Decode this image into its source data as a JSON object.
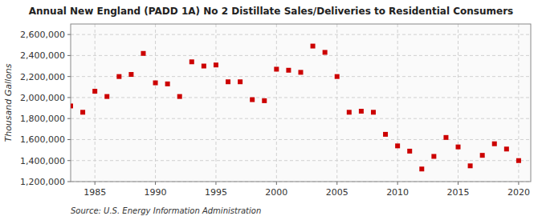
{
  "chart_data": {
    "type": "scatter",
    "title": "Annual New England (PADD 1A) No 2 Distillate Sales/Deliveries to Residential Consumers",
    "y_label": "Thousand Gallons",
    "annotations": [
      "Source: U.S. Energy Information Administration"
    ],
    "color": "#cc0000",
    "marker": "square",
    "grid": true,
    "x": [
      1983,
      1984,
      1985,
      1986,
      1987,
      1988,
      1989,
      1990,
      1991,
      1992,
      1993,
      1994,
      1995,
      1996,
      1997,
      1998,
      1999,
      2000,
      2001,
      2002,
      2003,
      2004,
      2005,
      2006,
      2007,
      2008,
      2009,
      2010,
      2011,
      2012,
      2013,
      2014,
      2015,
      2016,
      2017,
      2018,
      2019,
      2020
    ],
    "values": [
      1920000,
      1860000,
      2060000,
      2010000,
      2200000,
      2220000,
      2420000,
      2140000,
      2130000,
      2010000,
      2340000,
      2300000,
      2310000,
      2150000,
      2150000,
      1980000,
      1970000,
      2270000,
      2260000,
      2240000,
      2490000,
      2430000,
      2200000,
      1860000,
      1870000,
      1860000,
      1650000,
      1540000,
      1490000,
      1320000,
      1440000,
      1620000,
      1530000,
      1350000,
      1450000,
      1560000,
      1510000,
      1400000
    ],
    "xlim": [
      1983,
      2021
    ],
    "xticks": [
      1985,
      1990,
      1995,
      2000,
      2005,
      2010,
      2015,
      2020
    ],
    "ylim": [
      1200000,
      2700000
    ],
    "yticks": [
      {
        "value": 1200000,
        "label": "1,200,000"
      },
      {
        "value": 1400000,
        "label": "1,400,000"
      },
      {
        "value": 1600000,
        "label": "1,600,000"
      },
      {
        "value": 1800000,
        "label": "1,800,000"
      },
      {
        "value": 2000000,
        "label": "2,000,000"
      },
      {
        "value": 2200000,
        "label": "2,200,000"
      },
      {
        "value": 2400000,
        "label": "2,400,000"
      },
      {
        "value": 2600000,
        "label": "2,600,000"
      }
    ]
  }
}
